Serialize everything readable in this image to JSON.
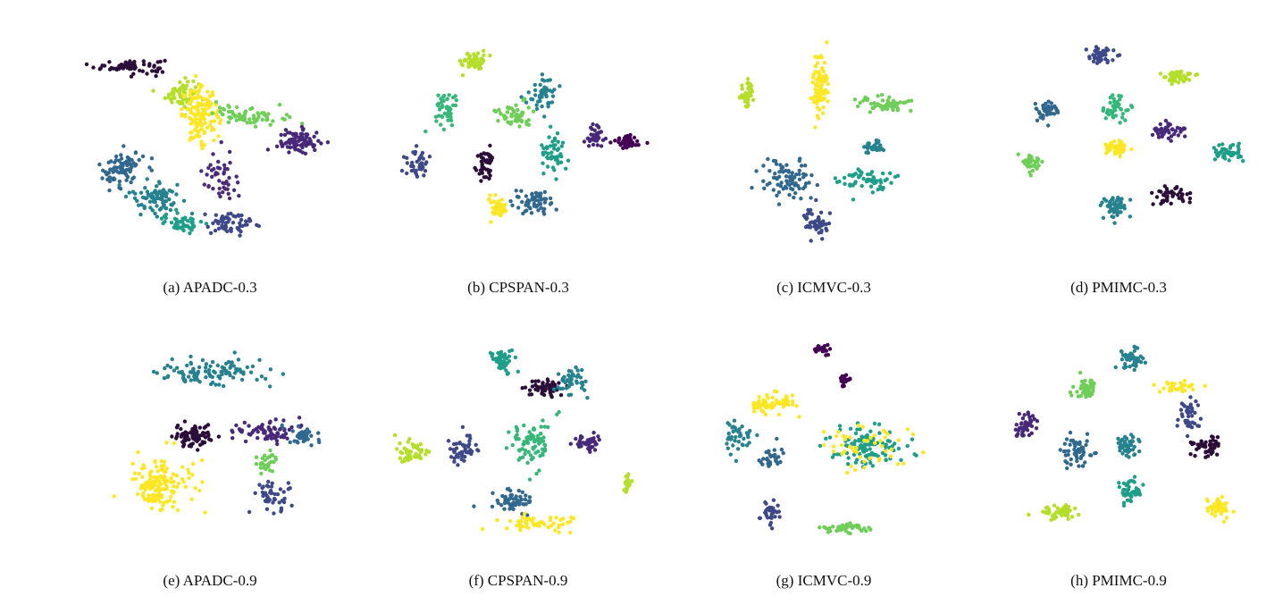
{
  "figure": {
    "palette": [
      "#440154",
      "#482878",
      "#3e4989",
      "#31688e",
      "#26828e",
      "#1f9e89",
      "#35b779",
      "#6ece58",
      "#b5de2b",
      "#fde725"
    ]
  },
  "chart_data": [
    {
      "type": "scatter",
      "caption": "(a)  APADC-0.3",
      "clusters": [
        {
          "color": "#2b0f3a",
          "center": [
            -0.7,
            0.75
          ],
          "spread": [
            0.28,
            0.06
          ],
          "count": 70
        },
        {
          "color": "#b5de2b",
          "center": [
            -0.25,
            0.5
          ],
          "spread": [
            0.13,
            0.12
          ],
          "count": 60
        },
        {
          "color": "#fde725",
          "center": [
            -0.08,
            0.3
          ],
          "spread": [
            0.15,
            0.22
          ],
          "count": 130
        },
        {
          "color": "#6ece58",
          "center": [
            0.35,
            0.3
          ],
          "spread": [
            0.28,
            0.08
          ],
          "count": 70
        },
        {
          "color": "#482878",
          "center": [
            0.78,
            0.05
          ],
          "spread": [
            0.17,
            0.1
          ],
          "count": 80
        },
        {
          "color": "#31688e",
          "center": [
            -0.78,
            -0.2
          ],
          "spread": [
            0.18,
            0.16
          ],
          "count": 80
        },
        {
          "color": "#26828e",
          "center": [
            -0.48,
            -0.45
          ],
          "spread": [
            0.2,
            0.14
          ],
          "count": 80
        },
        {
          "color": "#1f9e89",
          "center": [
            -0.25,
            -0.7
          ],
          "spread": [
            0.15,
            0.08
          ],
          "count": 50
        },
        {
          "color": "#3e4989",
          "center": [
            0.2,
            -0.7
          ],
          "spread": [
            0.25,
            0.1
          ],
          "count": 60
        },
        {
          "color": "#4b2a7a",
          "center": [
            0.1,
            -0.3
          ],
          "spread": [
            0.15,
            0.2
          ],
          "count": 45
        }
      ]
    },
    {
      "type": "scatter",
      "caption": "(b)  CPSPAN-0.3",
      "clusters": [
        {
          "color": "#b5de2b",
          "center": [
            -0.35,
            0.8
          ],
          "spread": [
            0.1,
            0.08
          ],
          "count": 50
        },
        {
          "color": "#26828e",
          "center": [
            0.25,
            0.5
          ],
          "spread": [
            0.1,
            0.15
          ],
          "count": 50
        },
        {
          "color": "#35b779",
          "center": [
            -0.6,
            0.35
          ],
          "spread": [
            0.1,
            0.16
          ],
          "count": 45
        },
        {
          "color": "#6ece58",
          "center": [
            0.0,
            0.3
          ],
          "spread": [
            0.14,
            0.1
          ],
          "count": 55
        },
        {
          "color": "#482878",
          "center": [
            0.72,
            0.1
          ],
          "spread": [
            0.08,
            0.1
          ],
          "count": 40
        },
        {
          "color": "#440154",
          "center": [
            1.0,
            0.05
          ],
          "spread": [
            0.12,
            0.06
          ],
          "count": 50
        },
        {
          "color": "#3e4989",
          "center": [
            -0.85,
            -0.15
          ],
          "spread": [
            0.08,
            0.12
          ],
          "count": 45
        },
        {
          "color": "#2b0f3a",
          "center": [
            -0.25,
            -0.15
          ],
          "spread": [
            0.08,
            0.12
          ],
          "count": 45
        },
        {
          "color": "#1f9e89",
          "center": [
            0.35,
            -0.05
          ],
          "spread": [
            0.1,
            0.14
          ],
          "count": 50
        },
        {
          "color": "#31688e",
          "center": [
            0.15,
            -0.5
          ],
          "spread": [
            0.16,
            0.1
          ],
          "count": 60
        },
        {
          "color": "#fde725",
          "center": [
            -0.15,
            -0.55
          ],
          "spread": [
            0.08,
            0.08
          ],
          "count": 40
        }
      ]
    },
    {
      "type": "scatter",
      "caption": "(c)  ICMVC-0.3",
      "clusters": [
        {
          "color": "#b5de2b",
          "center": [
            -0.65,
            0.5
          ],
          "spread": [
            0.07,
            0.12
          ],
          "count": 45
        },
        {
          "color": "#fde725",
          "center": [
            -0.02,
            0.55
          ],
          "spread": [
            0.06,
            0.3
          ],
          "count": 90
        },
        {
          "color": "#6ece58",
          "center": [
            0.55,
            0.4
          ],
          "spread": [
            0.22,
            0.06
          ],
          "count": 55
        },
        {
          "color": "#31688e",
          "center": [
            -0.3,
            -0.3
          ],
          "spread": [
            0.22,
            0.18
          ],
          "count": 80
        },
        {
          "color": "#1f9e89",
          "center": [
            0.4,
            -0.3
          ],
          "spread": [
            0.22,
            0.1
          ],
          "count": 60
        },
        {
          "color": "#26828e",
          "center": [
            0.45,
            0.0
          ],
          "spread": [
            0.1,
            0.06
          ],
          "count": 35
        },
        {
          "color": "#3e4989",
          "center": [
            -0.05,
            -0.7
          ],
          "spread": [
            0.1,
            0.12
          ],
          "count": 50
        }
      ]
    },
    {
      "type": "scatter",
      "caption": "(d)  PMIMC-0.3",
      "clusters": [
        {
          "color": "#3e4989",
          "center": [
            -0.2,
            0.85
          ],
          "spread": [
            0.12,
            0.07
          ],
          "count": 50
        },
        {
          "color": "#b5de2b",
          "center": [
            0.5,
            0.65
          ],
          "spread": [
            0.12,
            0.06
          ],
          "count": 45
        },
        {
          "color": "#31688e",
          "center": [
            -0.65,
            0.35
          ],
          "spread": [
            0.1,
            0.08
          ],
          "count": 40
        },
        {
          "color": "#35b779",
          "center": [
            -0.05,
            0.35
          ],
          "spread": [
            0.1,
            0.1
          ],
          "count": 45
        },
        {
          "color": "#482878",
          "center": [
            0.4,
            0.15
          ],
          "spread": [
            0.12,
            0.07
          ],
          "count": 45
        },
        {
          "color": "#fde725",
          "center": [
            -0.05,
            0.0
          ],
          "spread": [
            0.12,
            0.07
          ],
          "count": 45
        },
        {
          "color": "#1f9e89",
          "center": [
            0.95,
            -0.05
          ],
          "spread": [
            0.12,
            0.07
          ],
          "count": 45
        },
        {
          "color": "#6ece58",
          "center": [
            -0.8,
            -0.15
          ],
          "spread": [
            0.08,
            0.1
          ],
          "count": 40
        },
        {
          "color": "#2b0f3a",
          "center": [
            0.45,
            -0.45
          ],
          "spread": [
            0.14,
            0.07
          ],
          "count": 45
        },
        {
          "color": "#26828e",
          "center": [
            -0.05,
            -0.55
          ],
          "spread": [
            0.1,
            0.1
          ],
          "count": 55
        }
      ]
    },
    {
      "type": "scatter",
      "caption": "(e)  APADC-0.9",
      "clusters": [
        {
          "color": "#26828e",
          "center": [
            0.0,
            0.7
          ],
          "spread": [
            0.4,
            0.12
          ],
          "count": 110
        },
        {
          "color": "#fde725",
          "center": [
            -0.45,
            -0.35
          ],
          "spread": [
            0.25,
            0.22
          ],
          "count": 160
        },
        {
          "color": "#2b0f3a",
          "center": [
            -0.15,
            0.1
          ],
          "spread": [
            0.15,
            0.1
          ],
          "count": 80
        },
        {
          "color": "#482878",
          "center": [
            0.5,
            0.15
          ],
          "spread": [
            0.28,
            0.1
          ],
          "count": 70
        },
        {
          "color": "#6ece58",
          "center": [
            0.5,
            -0.15
          ],
          "spread": [
            0.08,
            0.08
          ],
          "count": 30
        },
        {
          "color": "#3e4989",
          "center": [
            0.55,
            -0.45
          ],
          "spread": [
            0.15,
            0.12
          ],
          "count": 50
        },
        {
          "color": "#31688e",
          "center": [
            0.8,
            0.1
          ],
          "spread": [
            0.12,
            0.07
          ],
          "count": 40
        }
      ]
    },
    {
      "type": "scatter",
      "caption": "(f)  CPSPAN-0.9",
      "clusters": [
        {
          "color": "#1f9e89",
          "center": [
            -0.1,
            0.8
          ],
          "spread": [
            0.1,
            0.1
          ],
          "count": 45
        },
        {
          "color": "#2b0f3a",
          "center": [
            0.25,
            0.55
          ],
          "spread": [
            0.16,
            0.08
          ],
          "count": 55
        },
        {
          "color": "#26828e",
          "center": [
            0.5,
            0.6
          ],
          "spread": [
            0.12,
            0.12
          ],
          "count": 45
        },
        {
          "color": "#b5de2b",
          "center": [
            -0.9,
            -0.05
          ],
          "spread": [
            0.12,
            0.08
          ],
          "count": 45
        },
        {
          "color": "#3e4989",
          "center": [
            -0.45,
            0.0
          ],
          "spread": [
            0.12,
            0.12
          ],
          "count": 50
        },
        {
          "color": "#35b779",
          "center": [
            0.15,
            0.05
          ],
          "spread": [
            0.16,
            0.18
          ],
          "count": 80
        },
        {
          "color": "#482878",
          "center": [
            0.65,
            0.05
          ],
          "spread": [
            0.1,
            0.08
          ],
          "count": 45
        },
        {
          "color": "#b5de2b",
          "center": [
            1.0,
            -0.35
          ],
          "spread": [
            0.03,
            0.08
          ],
          "count": 20
        },
        {
          "color": "#31688e",
          "center": [
            0.0,
            -0.5
          ],
          "spread": [
            0.18,
            0.1
          ],
          "count": 55
        },
        {
          "color": "#fde725",
          "center": [
            0.2,
            -0.7
          ],
          "spread": [
            0.25,
            0.07
          ],
          "count": 55
        }
      ]
    },
    {
      "type": "scatter",
      "caption": "(g)  ICMVC-0.9",
      "clusters": [
        {
          "color": "#440154",
          "center": [
            0.0,
            0.9
          ],
          "spread": [
            0.07,
            0.05
          ],
          "count": 25
        },
        {
          "color": "#440154",
          "center": [
            0.2,
            0.62
          ],
          "spread": [
            0.05,
            0.05
          ],
          "count": 18
        },
        {
          "color": "#fde725",
          "center": [
            -0.45,
            0.4
          ],
          "spread": [
            0.18,
            0.08
          ],
          "count": 60
        },
        {
          "color": "#26828e",
          "center": [
            -0.75,
            0.1
          ],
          "spread": [
            0.1,
            0.1
          ],
          "count": 40
        },
        {
          "color": "#31688e",
          "center": [
            -0.45,
            -0.1
          ],
          "spread": [
            0.1,
            0.08
          ],
          "count": 30
        },
        {
          "color": "#1f9e89",
          "center": [
            0.4,
            0.0
          ],
          "spread": [
            0.3,
            0.18
          ],
          "count": 110
        },
        {
          "color": "#fde725",
          "center": [
            0.4,
            0.0
          ],
          "spread": [
            0.3,
            0.18
          ],
          "count": 50
        },
        {
          "color": "#3e4989",
          "center": [
            -0.45,
            -0.6
          ],
          "spread": [
            0.08,
            0.1
          ],
          "count": 35
        },
        {
          "color": "#6ece58",
          "center": [
            0.2,
            -0.75
          ],
          "spread": [
            0.2,
            0.04
          ],
          "count": 40
        }
      ]
    },
    {
      "type": "scatter",
      "caption": "(h)  PMIMC-0.9",
      "clusters": [
        {
          "color": "#26828e",
          "center": [
            0.1,
            0.8
          ],
          "spread": [
            0.1,
            0.1
          ],
          "count": 45
        },
        {
          "color": "#6ece58",
          "center": [
            -0.3,
            0.55
          ],
          "spread": [
            0.1,
            0.1
          ],
          "count": 45
        },
        {
          "color": "#fde725",
          "center": [
            0.5,
            0.55
          ],
          "spread": [
            0.15,
            0.05
          ],
          "count": 30
        },
        {
          "color": "#3e4989",
          "center": [
            0.6,
            0.3
          ],
          "spread": [
            0.08,
            0.12
          ],
          "count": 40
        },
        {
          "color": "#482878",
          "center": [
            -0.85,
            0.2
          ],
          "spread": [
            0.1,
            0.1
          ],
          "count": 45
        },
        {
          "color": "#31688e",
          "center": [
            -0.4,
            -0.05
          ],
          "spread": [
            0.12,
            0.15
          ],
          "count": 55
        },
        {
          "color": "#26828e",
          "center": [
            0.05,
            0.0
          ],
          "spread": [
            0.1,
            0.1
          ],
          "count": 45
        },
        {
          "color": "#2b0f3a",
          "center": [
            0.75,
            0.0
          ],
          "spread": [
            0.12,
            0.08
          ],
          "count": 50
        },
        {
          "color": "#1f9e89",
          "center": [
            0.1,
            -0.4
          ],
          "spread": [
            0.1,
            0.12
          ],
          "count": 45
        },
        {
          "color": "#b5de2b",
          "center": [
            -0.55,
            -0.6
          ],
          "spread": [
            0.15,
            0.07
          ],
          "count": 45
        },
        {
          "color": "#fde725",
          "center": [
            0.85,
            -0.55
          ],
          "spread": [
            0.1,
            0.08
          ],
          "count": 45
        }
      ]
    }
  ]
}
